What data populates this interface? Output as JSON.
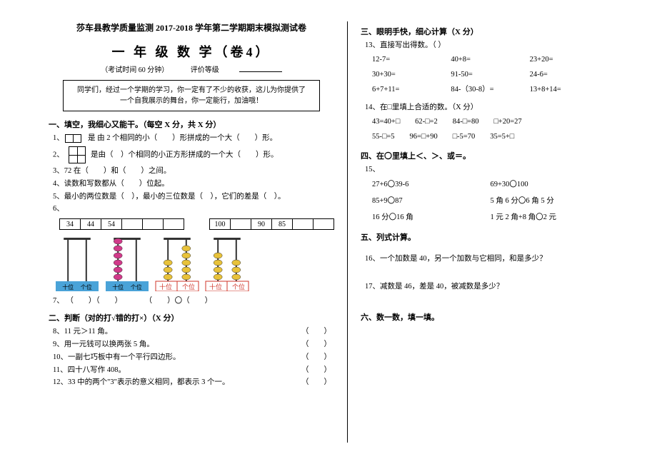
{
  "header": "莎车县教学质量监测 2017-2018 学年第二学期期末模拟测试卷",
  "title": "一 年 级 数 学（卷4）",
  "subtitle_time": "（考试时间 60 分钟）",
  "subtitle_grade": "评价等级",
  "note": "同学们，经过一个学期的学习，你一定有了不少的收获，这儿为你提供了一个自我展示的舞台，你一定能行，加油哦！",
  "sec1": {
    "title": "一、填空，我细心又能干。（每空 X 分，共 X 分）",
    "q1a": "1、",
    "q1b": "是 由 2 个相同的小（　　）形拼成的一个大（　　）形。",
    "q2a": "2、",
    "q2b": "是由（　）个相同的小正方形拼成的一个大（　　）形。",
    "q3": "3、72 在（　　）和（　　）之间。",
    "q4": "4、读数和写数都从（　　）位起。",
    "q5": "5、最小的两位数是（　），最小的三位数是（　），它们的差是（　）。",
    "q6": "6、",
    "t1": [
      "34",
      "44",
      "54",
      "",
      "",
      ""
    ],
    "t2": [
      "100",
      "",
      "90",
      "85",
      "",
      ""
    ],
    "q7": "7、",
    "ab_labels": "（　　）（　　）　　　　（　　）〇（　　）"
  },
  "sec2": {
    "title": "二、判断（对的打√错的打×）（X 分）",
    "q8": "8、11 元＞11 角。",
    "q9": "9、用一元钱可以换两张 5 角。",
    "q10": "10、一副七巧板中有一个平行四边形。",
    "q11": "11、四十八写作 408。",
    "q12": "12、33 中的两个\"3\"表示的意义相同，都表示 3 个一。",
    "paren": "（　　）"
  },
  "sec3": {
    "title": "三、眼明手快，细心计算（X 分）",
    "q13": "13、直接写出得数。（ ）",
    "r1": [
      "12-7=",
      "40+8=",
      "23+20="
    ],
    "r2": [
      "30+30=",
      "91-50=",
      "24-6="
    ],
    "r3": [
      "6+7+11=",
      "84-（30-8）=",
      "13+8+14="
    ],
    "q14": "14、在□里填上合适的数。（X 分）",
    "f1": "43=40+□　　62-□=2　　84-□=80　　□+20=27",
    "f2": "55-□=5　　96=□+90　　□-5=70　　35=5+□"
  },
  "sec4": {
    "title": "四、在〇里填上＜、＞、或＝。",
    "q15": "15、",
    "r1": [
      "27+6〇39-6",
      "69+30〇100"
    ],
    "r2": [
      "85+9〇87",
      "5 角 6 分〇6 角 5 分"
    ],
    "r3": [
      "16 分〇16 角",
      "1 元 2 角+8 角〇2 元"
    ]
  },
  "sec5": {
    "title": "五、列式计算。",
    "q16": "16、一个加数是 40，另一个加数与它相同，和是多少？",
    "q17": "17、减数是 46，差是 40，被减数是多少？"
  },
  "sec6": {
    "title": "六、数一数，填一填。"
  },
  "abacus": [
    {
      "rods": [
        {
          "beads": 0,
          "color": "#6db93e"
        },
        {
          "beads": 0,
          "color": "#d13a8a"
        }
      ],
      "base": "#4aa3d8",
      "labels": [
        "十位",
        "个位"
      ]
    },
    {
      "rods": [
        {
          "beads": 6,
          "color": "#d13a8a"
        },
        {
          "beads": 0,
          "color": "#d13a8a"
        }
      ],
      "base": "#4aa3d8",
      "labels": [
        "十位",
        "个位"
      ]
    },
    {
      "rods": [
        {
          "beads": 3,
          "color": "#e8c23a"
        },
        {
          "beads": 5,
          "color": "#e8c23a"
        }
      ],
      "base": "#7ec24a",
      "labels": [
        "十位",
        "个位"
      ],
      "boxed": true
    },
    {
      "rods": [
        {
          "beads": 4,
          "color": "#e8c23a"
        },
        {
          "beads": 3,
          "color": "#e8c23a"
        }
      ],
      "base": "#7ec24a",
      "labels": [
        "十位",
        "个位"
      ],
      "boxed": true
    }
  ]
}
